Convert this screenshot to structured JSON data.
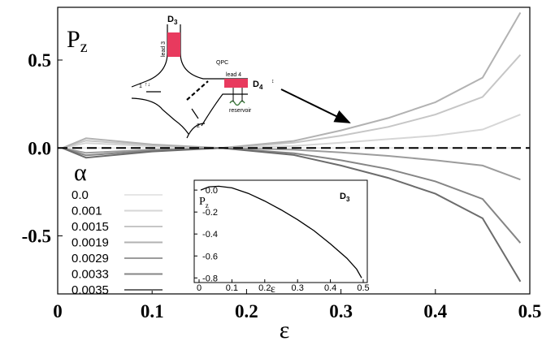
{
  "chart_data": [
    {
      "type": "line",
      "ylabel": "P",
      "ylabel_sub": "z",
      "xlabel": "ε",
      "xlim": [
        0,
        0.5
      ],
      "ylim": [
        -0.83,
        0.8
      ],
      "x_ticks": [
        "0",
        "0.1",
        "0.2",
        "0.3",
        "0.4",
        "0.5"
      ],
      "y_ticks": [
        "0.5",
        "0.0",
        "-0.5"
      ],
      "legend_title": "α",
      "legend_placement": "bottom-left",
      "series": [
        {
          "name": "0.0",
          "color": "#e6e6e6",
          "values": [
            [
              0.005,
              0.0
            ],
            [
              0.1,
              0.0
            ],
            [
              0.2,
              0.0
            ],
            [
              0.3,
              0.0
            ],
            [
              0.4,
              0.0
            ],
            [
              0.49,
              0.0
            ]
          ]
        },
        {
          "name": "0.001",
          "color": "#d6d6d6",
          "values": [
            [
              0.005,
              0.0
            ],
            [
              0.03,
              0.028
            ],
            [
              0.1,
              0.01
            ],
            [
              0.173,
              0.0
            ],
            [
              0.25,
              0.012
            ],
            [
              0.3,
              0.03
            ],
            [
              0.35,
              0.05
            ],
            [
              0.4,
              0.07
            ],
            [
              0.45,
              0.105
            ],
            [
              0.49,
              0.19
            ]
          ]
        },
        {
          "name": "0.0015",
          "color": "#c6c6c6",
          "values": [
            [
              0.005,
              0.0
            ],
            [
              0.03,
              0.042
            ],
            [
              0.1,
              0.015
            ],
            [
              0.173,
              0.0
            ],
            [
              0.25,
              0.03
            ],
            [
              0.3,
              0.07
            ],
            [
              0.35,
              0.12
            ],
            [
              0.4,
              0.19
            ],
            [
              0.45,
              0.29
            ],
            [
              0.49,
              0.53
            ]
          ]
        },
        {
          "name": "0.0019",
          "color": "#b2b2b2",
          "values": [
            [
              0.005,
              0.0
            ],
            [
              0.03,
              0.055
            ],
            [
              0.1,
              0.02
            ],
            [
              0.173,
              0.0
            ],
            [
              0.25,
              0.04
            ],
            [
              0.3,
              0.1
            ],
            [
              0.35,
              0.17
            ],
            [
              0.4,
              0.26
            ],
            [
              0.45,
              0.4
            ],
            [
              0.49,
              0.77
            ]
          ]
        },
        {
          "name": "0.0029",
          "color": "#9c9c9c",
          "values": [
            [
              0.005,
              0.0
            ],
            [
              0.03,
              -0.028
            ],
            [
              0.1,
              -0.01
            ],
            [
              0.173,
              0.0
            ],
            [
              0.25,
              -0.01
            ],
            [
              0.3,
              -0.025
            ],
            [
              0.35,
              -0.045
            ],
            [
              0.4,
              -0.07
            ],
            [
              0.45,
              -0.1
            ],
            [
              0.49,
              -0.18
            ]
          ]
        },
        {
          "name": "0.0033",
          "color": "#858585",
          "values": [
            [
              0.005,
              0.0
            ],
            [
              0.03,
              -0.042
            ],
            [
              0.1,
              -0.015
            ],
            [
              0.173,
              0.0
            ],
            [
              0.25,
              -0.03
            ],
            [
              0.3,
              -0.07
            ],
            [
              0.35,
              -0.12
            ],
            [
              0.4,
              -0.19
            ],
            [
              0.45,
              -0.29
            ],
            [
              0.49,
              -0.54
            ]
          ]
        },
        {
          "name": "0.0035",
          "color": "#6c6c6c",
          "values": [
            [
              0.005,
              0.0
            ],
            [
              0.03,
              -0.055
            ],
            [
              0.1,
              -0.02
            ],
            [
              0.173,
              0.0
            ],
            [
              0.25,
              -0.04
            ],
            [
              0.3,
              -0.1
            ],
            [
              0.35,
              -0.17
            ],
            [
              0.4,
              -0.26
            ],
            [
              0.45,
              -0.4
            ],
            [
              0.49,
              -0.76
            ]
          ]
        }
      ],
      "dashed_zero_line": true,
      "legend_entries": [
        "0.0",
        "0.001",
        "0.0015",
        "0.0019",
        "0.0029",
        "0.0033",
        "0.0035"
      ]
    },
    {
      "type": "line",
      "ylabel": "P",
      "ylabel_sub": "z",
      "xlabel": "ε",
      "annotation": "D",
      "annotation_sub": "3",
      "xlim": [
        0,
        0.5
      ],
      "ylim": [
        -0.82,
        0.06
      ],
      "x_ticks": [
        "0",
        "0.1",
        "0.2",
        "0.3",
        "0.4",
        "0.5"
      ],
      "y_ticks": [
        "0.0",
        "-0.2",
        "-0.4",
        "-0.6",
        "-0.8"
      ],
      "series": [
        {
          "values": [
            [
              0.005,
              0.0
            ],
            [
              0.03,
              0.03
            ],
            [
              0.06,
              0.035
            ],
            [
              0.1,
              0.02
            ],
            [
              0.15,
              -0.03
            ],
            [
              0.2,
              -0.1
            ],
            [
              0.25,
              -0.18
            ],
            [
              0.3,
              -0.27
            ],
            [
              0.35,
              -0.37
            ],
            [
              0.4,
              -0.49
            ],
            [
              0.45,
              -0.62
            ],
            [
              0.48,
              -0.72
            ],
            [
              0.495,
              -0.8
            ]
          ]
        }
      ]
    }
  ],
  "schematic": {
    "d3": "D",
    "d3_sub": "3",
    "d4": "D",
    "d4_sub": "4",
    "lead3": "lead 3",
    "lead4": "lead 4",
    "qpc": "QPC",
    "reservoir": "reservoir",
    "port1": "1",
    "port2": "2",
    "accent": "#e83a5e"
  }
}
